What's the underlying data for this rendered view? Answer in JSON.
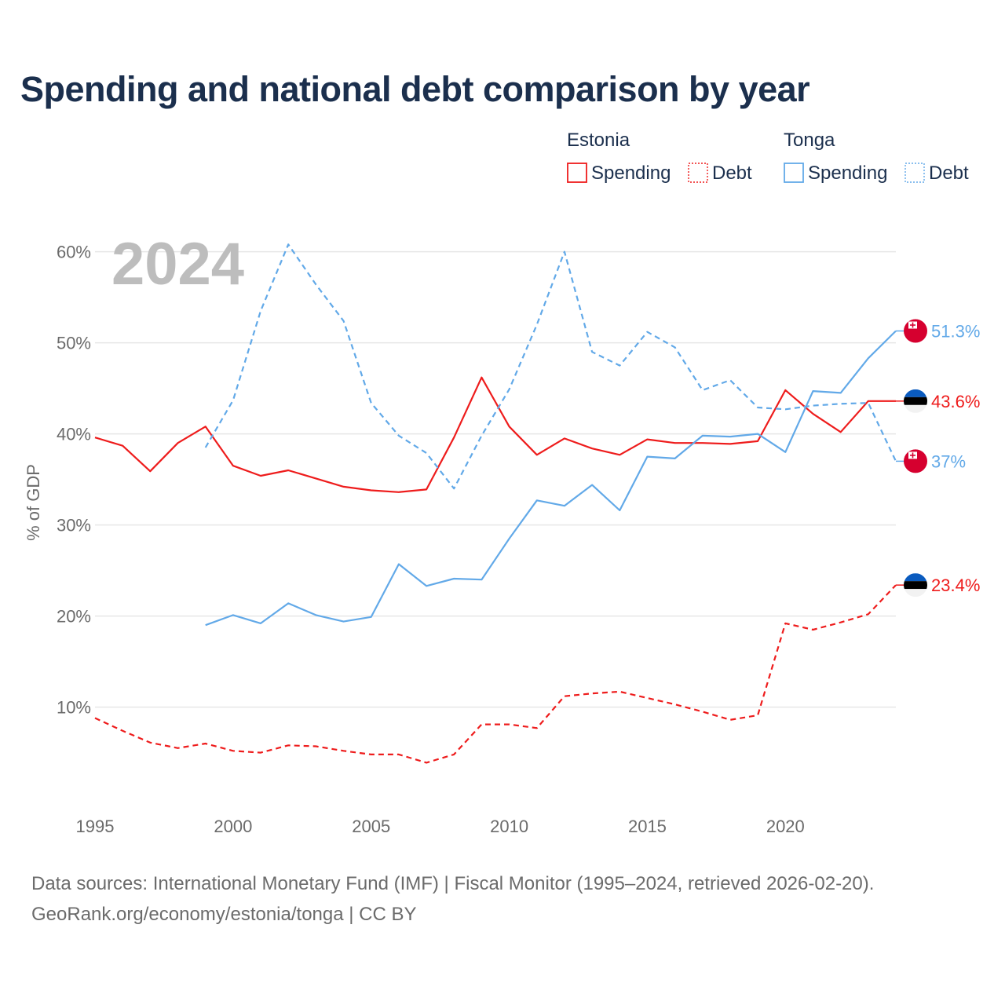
{
  "title": "Spending and national debt comparison by year",
  "colors": {
    "estonia": "#ee1c1c",
    "tonga": "#62a9e8",
    "year": "#bdbdbd",
    "title": "#1b2f4d"
  },
  "legend": {
    "groups": [
      {
        "name": "Estonia",
        "items": [
          {
            "label": "Spending",
            "style": "solid"
          },
          {
            "label": "Debt",
            "style": "dotted"
          }
        ]
      },
      {
        "name": "Tonga",
        "items": [
          {
            "label": "Spending",
            "style": "solid"
          },
          {
            "label": "Debt",
            "style": "dotted"
          }
        ]
      }
    ]
  },
  "chart_data": {
    "type": "line",
    "year_label": "2024",
    "ylabel": "% of GDP",
    "xlabel": "",
    "xlim": [
      1995,
      2024
    ],
    "ylim": [
      0,
      62
    ],
    "y_ticks": [
      10,
      20,
      30,
      40,
      50,
      60
    ],
    "y_tick_labels": [
      "10%",
      "20%",
      "30%",
      "40%",
      "50%",
      "60%"
    ],
    "x_ticks": [
      1995,
      2000,
      2005,
      2010,
      2015,
      2020
    ],
    "x_tick_labels": [
      "1995",
      "2000",
      "2005",
      "2010",
      "2015",
      "2020"
    ],
    "grid": true,
    "series": [
      {
        "name": "Estonia Spending",
        "country": "Estonia",
        "color": "#ee1c1c",
        "dash": "solid",
        "x": [
          1995,
          1996,
          1997,
          1998,
          1999,
          2000,
          2001,
          2002,
          2003,
          2004,
          2005,
          2006,
          2007,
          2008,
          2009,
          2010,
          2011,
          2012,
          2013,
          2014,
          2015,
          2016,
          2017,
          2018,
          2019,
          2020,
          2021,
          2022,
          2023,
          2024
        ],
        "values": [
          39.6,
          38.7,
          35.9,
          39.0,
          40.8,
          36.5,
          35.4,
          36.0,
          35.1,
          34.2,
          33.8,
          33.6,
          33.9,
          39.6,
          46.2,
          40.8,
          37.7,
          39.5,
          38.4,
          37.7,
          39.4,
          39.0,
          39.0,
          38.9,
          39.2,
          44.8,
          42.2,
          40.2,
          43.6,
          43.6
        ],
        "end_label": "43.6%"
      },
      {
        "name": "Estonia Debt",
        "country": "Estonia",
        "color": "#ee1c1c",
        "dash": "dashed",
        "x": [
          1995,
          1996,
          1997,
          1998,
          1999,
          2000,
          2001,
          2002,
          2003,
          2004,
          2005,
          2006,
          2007,
          2008,
          2009,
          2010,
          2011,
          2012,
          2013,
          2014,
          2015,
          2016,
          2017,
          2018,
          2019,
          2020,
          2021,
          2022,
          2023,
          2024
        ],
        "values": [
          8.8,
          7.4,
          6.1,
          5.5,
          6.0,
          5.2,
          5.0,
          5.8,
          5.7,
          5.2,
          4.8,
          4.8,
          3.9,
          4.8,
          8.1,
          8.1,
          7.7,
          11.2,
          11.5,
          11.7,
          11.0,
          10.3,
          9.5,
          8.6,
          9.1,
          19.2,
          18.5,
          19.3,
          20.2,
          23.4
        ],
        "end_label": "23.4%"
      },
      {
        "name": "Tonga Spending",
        "country": "Tonga",
        "color": "#62a9e8",
        "dash": "solid",
        "x": [
          1999,
          2000,
          2001,
          2002,
          2003,
          2004,
          2005,
          2006,
          2007,
          2008,
          2009,
          2010,
          2011,
          2012,
          2013,
          2014,
          2015,
          2016,
          2017,
          2018,
          2019,
          2020,
          2021,
          2022,
          2023,
          2024
        ],
        "values": [
          19.0,
          20.1,
          19.2,
          21.4,
          20.1,
          19.4,
          19.9,
          25.7,
          23.3,
          24.1,
          24.0,
          28.5,
          32.7,
          32.1,
          34.4,
          31.6,
          37.5,
          37.3,
          39.8,
          39.7,
          40.0,
          38.0,
          44.7,
          44.5,
          48.3,
          51.3
        ],
        "end_label": "51.3%"
      },
      {
        "name": "Tonga Debt",
        "country": "Tonga",
        "color": "#62a9e8",
        "dash": "dashed",
        "x": [
          1999,
          2000,
          2001,
          2002,
          2003,
          2004,
          2005,
          2006,
          2007,
          2008,
          2009,
          2010,
          2011,
          2012,
          2013,
          2014,
          2015,
          2016,
          2017,
          2018,
          2019,
          2020,
          2021,
          2022,
          2023,
          2024
        ],
        "values": [
          38.5,
          43.7,
          53.5,
          60.8,
          56.4,
          52.4,
          43.4,
          39.8,
          37.9,
          34.0,
          39.8,
          44.9,
          52.0,
          60.0,
          49.0,
          47.5,
          51.2,
          49.5,
          44.8,
          45.9,
          42.9,
          42.7,
          43.1,
          43.3,
          43.4,
          37.0
        ],
        "end_label": "37%"
      }
    ]
  },
  "footer": {
    "line1": "Data sources: International Monetary Fund (IMF) | Fiscal Monitor (1995–2024, retrieved 2026-02-20).",
    "line2": "GeoRank.org/economy/estonia/tonga | CC BY"
  }
}
